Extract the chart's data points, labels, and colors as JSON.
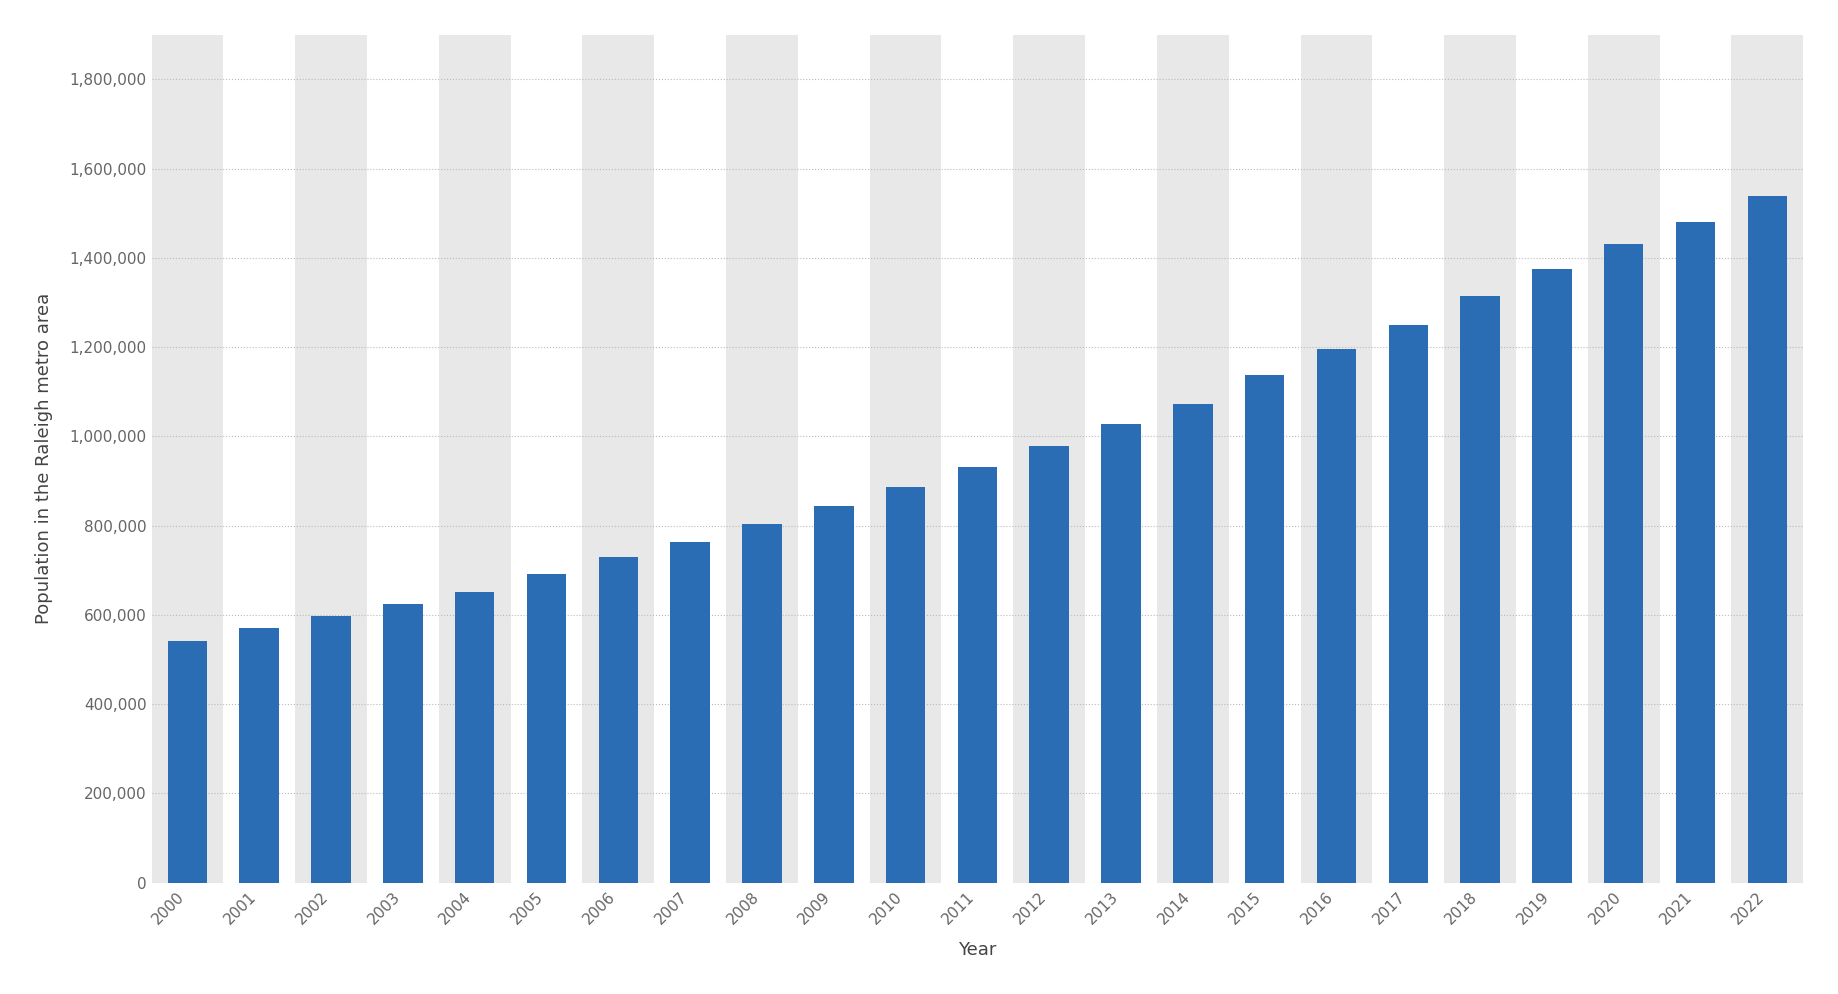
{
  "years": [
    2000,
    2001,
    2002,
    2003,
    2004,
    2005,
    2006,
    2007,
    2008,
    2009,
    2010,
    2011,
    2012,
    2013,
    2014,
    2015,
    2016,
    2017,
    2018,
    2019,
    2020,
    2021,
    2022
  ],
  "values": [
    541000,
    570000,
    597000,
    624000,
    652000,
    692000,
    729000,
    763000,
    803000,
    843000,
    886000,
    932000,
    979000,
    1027000,
    1073000,
    1138000,
    1196000,
    1249000,
    1315000,
    1375000,
    1432000,
    1481000,
    1538000
  ],
  "bar_color": "#2a6db5",
  "xlabel": "Year",
  "ylabel": "Population in the Raleigh metro area",
  "ylim": [
    0,
    1900000
  ],
  "yticks": [
    0,
    200000,
    400000,
    600000,
    800000,
    1000000,
    1200000,
    1400000,
    1600000,
    1800000
  ],
  "background_color": "#ffffff",
  "plot_bg_shaded": "#e8e8e8",
  "plot_bg_clear": "#ffffff",
  "grid_color": "#bbbbbb",
  "axis_label_fontsize": 13,
  "tick_fontsize": 11,
  "bar_width": 0.55
}
